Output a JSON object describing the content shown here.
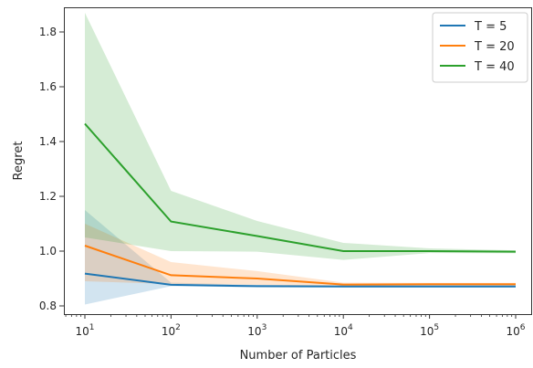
{
  "chart_data": {
    "type": "line",
    "title": "",
    "xlabel": "Number of Particles",
    "ylabel": "Regret",
    "xscale": "log",
    "x": [
      10,
      100,
      1000,
      10000,
      100000,
      1000000
    ],
    "xlim": [
      10,
      1000000
    ],
    "ylim": [
      0.77,
      1.89
    ],
    "x_ticks": [
      {
        "value": 10,
        "base": "10",
        "exp": "1"
      },
      {
        "value": 100,
        "base": "10",
        "exp": "2"
      },
      {
        "value": 1000,
        "base": "10",
        "exp": "3"
      },
      {
        "value": 10000,
        "base": "10",
        "exp": "4"
      },
      {
        "value": 100000,
        "base": "10",
        "exp": "5"
      },
      {
        "value": 1000000,
        "base": "10",
        "exp": "6"
      }
    ],
    "y_ticks": [
      {
        "value": 0.8,
        "label": "0.8"
      },
      {
        "value": 1.0,
        "label": "1.0"
      },
      {
        "value": 1.2,
        "label": "1.2"
      },
      {
        "value": 1.4,
        "label": "1.4"
      },
      {
        "value": 1.6,
        "label": "1.6"
      },
      {
        "value": 1.8,
        "label": "1.8"
      }
    ],
    "grid": false,
    "legend_position": "top-right",
    "series": [
      {
        "name": "T = 5",
        "color": "#1f77b4",
        "values": [
          0.918,
          0.877,
          0.872,
          0.871,
          0.871,
          0.871
        ],
        "lower": [
          0.805,
          0.872,
          0.868,
          0.868,
          0.868,
          0.868
        ],
        "upper": [
          1.15,
          0.885,
          0.877,
          0.875,
          0.875,
          0.875
        ]
      },
      {
        "name": "T = 20",
        "color": "#ff7f0e",
        "values": [
          1.02,
          0.912,
          0.9,
          0.878,
          0.879,
          0.879
        ],
        "lower": [
          0.89,
          0.88,
          0.877,
          0.872,
          0.873,
          0.873
        ],
        "upper": [
          1.1,
          0.96,
          0.927,
          0.885,
          0.884,
          0.884
        ]
      },
      {
        "name": "T = 40",
        "color": "#2ca02c",
        "values": [
          1.465,
          1.108,
          1.055,
          1.0,
          1.0,
          0.998
        ],
        "lower": [
          1.05,
          1.0,
          0.998,
          0.968,
          0.993,
          0.992
        ],
        "upper": [
          1.87,
          1.22,
          1.11,
          1.03,
          1.01,
          1.003
        ]
      }
    ]
  }
}
